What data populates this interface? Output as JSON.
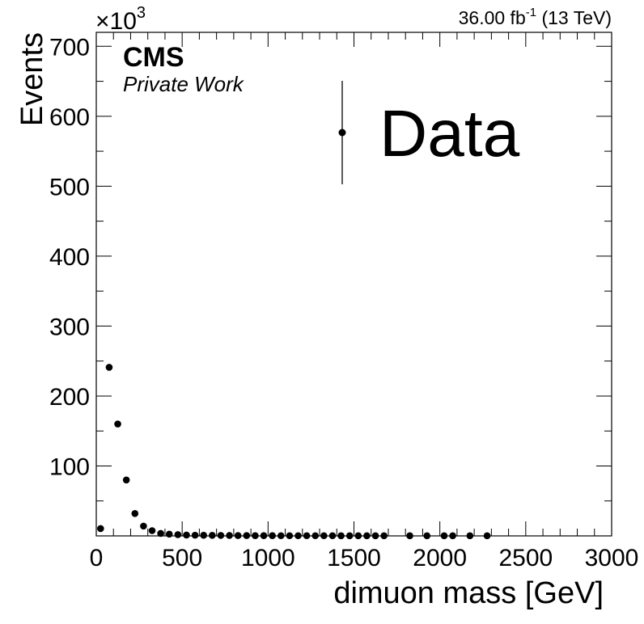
{
  "header": {
    "experiment": "CMS",
    "subtitle": "Private Work",
    "lumi_value": "36.00 fb",
    "lumi_exp": "-1",
    "energy": " (13 TeV)",
    "y_multiplier": "×10",
    "y_multiplier_exp": "3"
  },
  "chart_data": {
    "type": "scatter",
    "xlabel": "dimuon mass [GeV]",
    "ylabel": "Events",
    "xlim": [
      0,
      3000
    ],
    "ylim": [
      0,
      720
    ],
    "y_units": "×10^3 events",
    "x_ticks": [
      0,
      500,
      1000,
      1500,
      2000,
      2500,
      3000
    ],
    "y_ticks": [
      100,
      200,
      300,
      400,
      500,
      600,
      700
    ],
    "grid": false,
    "legend": {
      "position": "top-right",
      "entries": [
        "Data"
      ]
    },
    "series": [
      {
        "name": "Data",
        "color": "#000000",
        "x": [
          25,
          75,
          125,
          175,
          225,
          275,
          325,
          375,
          425,
          475,
          525,
          575,
          625,
          675,
          725,
          775,
          825,
          875,
          925,
          975,
          1025,
          1075,
          1125,
          1175,
          1225,
          1275,
          1325,
          1375,
          1425,
          1475,
          1525,
          1575,
          1625,
          1675,
          1825,
          1925,
          2025,
          2075,
          2175,
          2275
        ],
        "y": [
          10.5,
          241,
          160,
          80,
          32,
          14,
          7.5,
          3.5,
          2.5,
          1.8,
          1.2,
          1.0,
          0.9,
          0.8,
          0.7,
          0.6,
          0.5,
          0.5,
          0.4,
          0.4,
          0.4,
          0.3,
          0.3,
          0.3,
          0.3,
          0.3,
          0.3,
          0.3,
          0.2,
          0.2,
          0.2,
          0.2,
          0.2,
          0.2,
          0.2,
          0.2,
          0.2,
          0.2,
          0.2,
          0.2
        ]
      }
    ]
  }
}
